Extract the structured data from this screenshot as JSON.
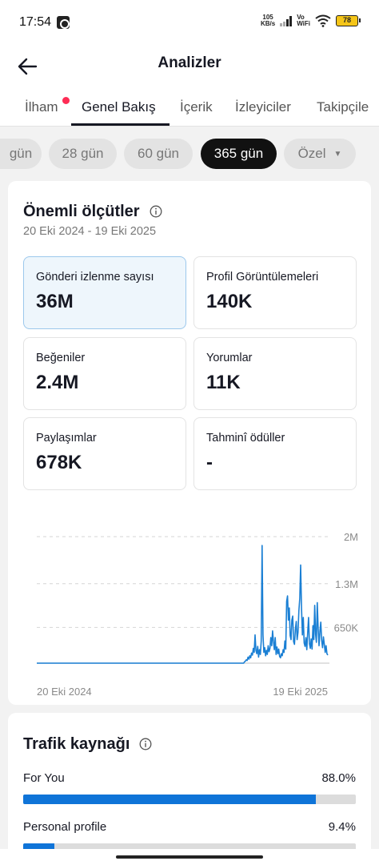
{
  "status_bar": {
    "time": "17:54",
    "net_speed_value": "105",
    "net_speed_unit": "KB/s",
    "vowifi_top": "Vo",
    "vowifi_bottom": "WiFi",
    "battery": "78"
  },
  "header": {
    "title": "Analizler",
    "back_icon": "arrow-left-icon"
  },
  "tabs": [
    {
      "label": "İlham",
      "has_dot": true
    },
    {
      "label": "Genel Bakış",
      "active": true
    },
    {
      "label": "İçerik"
    },
    {
      "label": "İzleyiciler"
    },
    {
      "label": "Takipçile"
    }
  ],
  "periods": [
    {
      "label": "gün"
    },
    {
      "label": "28 gün"
    },
    {
      "label": "60 gün"
    },
    {
      "label": "365 gün",
      "active": true
    },
    {
      "label": "Özel"
    }
  ],
  "metrics_section": {
    "title": "Önemli ölçütler",
    "date_range": "20 Eki 2024 - 19 Eki 2025",
    "items": [
      {
        "label": "Gönderi izlenme sayısı",
        "value": "36M",
        "selected": true
      },
      {
        "label": "Profil Görüntülemeleri",
        "value": "140K"
      },
      {
        "label": "Beğeniler",
        "value": "2.4M"
      },
      {
        "label": "Yorumlar",
        "value": "11K"
      },
      {
        "label": "Paylaşımlar",
        "value": "678K"
      },
      {
        "label": "Tahminî ödüller",
        "value": "-"
      }
    ]
  },
  "chart_data": {
    "type": "line",
    "series_color": "#1a7fd4",
    "ylim": [
      0,
      2000000
    ],
    "ytick_labels": [
      "2M",
      "1.3M",
      "650K"
    ],
    "ytick_values": [
      2000000,
      1300000,
      650000
    ],
    "xtick_labels": [
      "20 Eki 2024",
      "19 Eki 2025"
    ],
    "x_start": "2024-10-20",
    "x_end": "2025-10-19",
    "values": [
      0,
      0,
      0,
      0,
      0,
      0,
      0,
      0,
      0,
      0,
      0,
      0,
      0,
      0,
      0,
      0,
      0,
      0,
      0,
      0,
      0,
      0,
      0,
      0,
      0,
      0,
      0,
      0,
      0,
      0,
      0,
      0,
      0,
      0,
      0,
      0,
      0,
      0,
      0,
      0,
      0,
      0,
      0,
      0,
      0,
      0,
      0,
      0,
      0,
      0,
      0,
      0,
      0,
      0,
      0,
      0,
      0,
      0,
      0,
      0,
      0,
      0,
      0,
      0,
      0,
      0,
      0,
      0,
      0,
      0,
      0,
      0,
      0,
      0,
      0,
      0,
      0,
      0,
      0,
      0,
      0,
      0,
      0,
      0,
      0,
      0,
      0,
      0,
      0,
      0,
      0,
      0,
      0,
      0,
      0,
      0,
      0,
      0,
      0,
      0,
      0,
      0,
      0,
      0,
      0,
      0,
      0,
      0,
      0,
      0,
      0,
      0,
      0,
      0,
      0,
      0,
      0,
      0,
      0,
      0,
      0,
      0,
      0,
      0,
      0,
      0,
      0,
      0,
      0,
      0,
      0,
      0,
      0,
      0,
      0,
      0,
      0,
      0,
      0,
      0,
      0,
      0,
      0,
      0,
      0,
      0,
      0,
      0,
      0,
      0,
      0,
      0,
      0,
      0,
      0,
      0,
      0,
      0,
      0,
      0,
      0,
      0,
      0,
      0,
      0,
      0,
      0,
      0,
      0,
      0,
      0,
      0,
      0,
      0,
      0,
      0,
      0,
      0,
      0,
      0,
      0,
      0,
      0,
      0,
      0,
      0,
      0,
      0,
      0,
      0,
      0,
      0,
      0,
      0,
      0,
      0,
      0,
      0,
      0,
      0,
      0,
      0,
      0,
      0,
      0,
      0,
      0,
      0,
      0,
      0,
      0,
      0,
      0,
      0,
      0,
      0,
      0,
      0,
      0,
      0,
      0,
      0,
      0,
      0,
      0,
      0,
      0,
      0,
      0,
      0,
      0,
      0,
      0,
      0,
      0,
      0,
      0,
      20000,
      30000,
      50000,
      40000,
      90000,
      60000,
      110000,
      80000,
      150000,
      120000,
      220000,
      160000,
      420000,
      190000,
      140000,
      250000,
      90000,
      200000,
      130000,
      330000,
      1750000,
      420000,
      160000,
      230000,
      110000,
      190000,
      130000,
      260000,
      170000,
      220000,
      380000,
      260000,
      480000,
      320000,
      200000,
      380000,
      130000,
      240000,
      140000,
      210000,
      100000,
      80000,
      140000,
      110000,
      200000,
      160000,
      330000,
      210000,
      920000,
      1000000,
      640000,
      820000,
      410000,
      350000,
      640000,
      700000,
      320000,
      280000,
      500000,
      620000,
      350000,
      460000,
      780000,
      960000,
      1460000,
      820000,
      420000,
      680000,
      300000,
      250000,
      380000,
      200000,
      450000,
      680000,
      290000,
      220000,
      360000,
      210000,
      560000,
      350000,
      860000,
      430000,
      310000,
      900000,
      520000,
      260000,
      470000,
      610000,
      340000,
      230000,
      390000,
      280000,
      160000,
      260000,
      140000,
      120000
    ]
  },
  "traffic_section": {
    "title": "Trafik kaynağı",
    "items": [
      {
        "label": "For You",
        "pct_text": "88.0%",
        "pct": 88.0
      },
      {
        "label": "Personal profile",
        "pct_text": "9.4%",
        "pct": 9.4
      }
    ]
  },
  "colors": {
    "accent_blue": "#0f74d8",
    "tab_dot": "#fe2c55",
    "selected_metric_bg": "#eef6fc"
  }
}
